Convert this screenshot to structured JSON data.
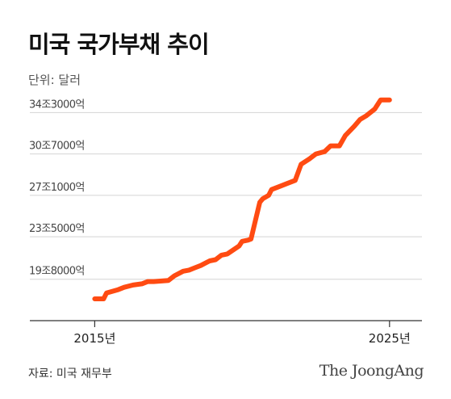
{
  "header": {
    "title": "미국 국가부채 추이",
    "unit": "단위: 달러"
  },
  "chart_data": {
    "type": "line",
    "xlabel": "",
    "ylabel": "",
    "y_ticks": [
      {
        "value": 19.8,
        "label": "19조8000억"
      },
      {
        "value": 23.5,
        "label": "23조5000억"
      },
      {
        "value": 27.1,
        "label": "27조1000억"
      },
      {
        "value": 30.7,
        "label": "30조7000억"
      },
      {
        "value": 34.3,
        "label": "34조3000억"
      }
    ],
    "x_ticks": [
      {
        "value": 2015,
        "label": "2015년"
      },
      {
        "value": 2025,
        "label": "2025년"
      }
    ],
    "xlim": [
      2012.8,
      2026.1
    ],
    "ylim": [
      16.2,
      36.5
    ],
    "grid": true,
    "color": "#ff4b12",
    "series": [
      {
        "x": [
          2015.0,
          2015.3,
          2015.4,
          2015.8,
          2016.0,
          2016.3,
          2016.6,
          2016.8,
          2017.0,
          2017.5,
          2017.7,
          2018.0,
          2018.2,
          2018.4,
          2018.6,
          2018.9,
          2019.1,
          2019.3,
          2019.5,
          2019.9,
          2020.0,
          2020.2,
          2020.3,
          2020.6,
          2020.7,
          2020.9,
          2021.0,
          2021.3,
          2021.5,
          2021.8,
          2022.0,
          2022.3,
          2022.5,
          2022.8,
          2023.0,
          2023.3,
          2023.5,
          2023.8,
          2024.0,
          2024.2,
          2024.5,
          2024.7,
          2025.0
        ],
        "y": [
          18.1,
          18.1,
          18.6,
          18.9,
          19.1,
          19.3,
          19.4,
          19.6,
          19.6,
          19.7,
          20.1,
          20.5,
          20.6,
          20.8,
          21.0,
          21.4,
          21.5,
          21.9,
          22.0,
          22.7,
          23.1,
          23.2,
          23.3,
          26.5,
          26.8,
          27.1,
          27.6,
          27.9,
          28.1,
          28.4,
          29.8,
          30.3,
          30.7,
          30.9,
          31.4,
          31.4,
          32.3,
          33.1,
          33.7,
          34.0,
          34.6,
          35.4,
          35.4
        ]
      }
    ]
  },
  "footer": {
    "source": "자료: 미국 재무부",
    "brand": "The JoongAng"
  }
}
